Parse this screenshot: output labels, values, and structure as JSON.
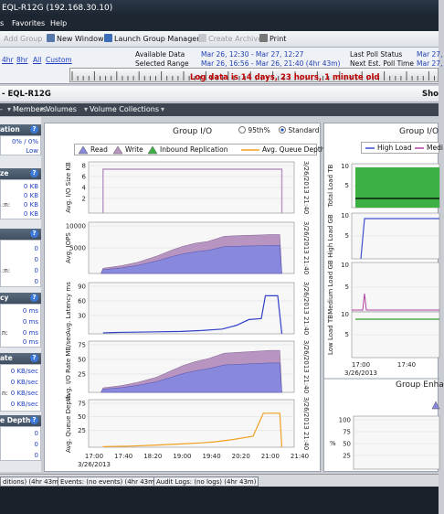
{
  "window": {
    "title": "EQL-R12G (192.168.30.10)"
  },
  "menu": [
    "s",
    "Favorites",
    "Help"
  ],
  "toolbar": {
    "add_group": "Add Group",
    "new_window": "New Window",
    "launch_manager": "Launch Group Manager",
    "create_archive": "Create Archive",
    "print": "Print"
  },
  "timebar": {
    "ranges": [
      "4hr",
      "8hr",
      "All",
      "Custom"
    ],
    "available_label": "Available Data",
    "selected_label": "Selected Range",
    "available_value": "Mar 26, 12:30 - Mar 27, 12:27",
    "selected_value": "Mar 26, 16:56 - Mar 26, 21:40 (4hr 43m)",
    "last_poll_label": "Last Poll Status",
    "next_poll_label": "Next Est. Poll Time",
    "last_poll_value": "Mar 27,",
    "next_poll_value": "Mar 27,",
    "log_banner": "Log data is 14 days, 23 hours, 1 minute old"
  },
  "group": {
    "name": "- EQL-R12G",
    "right": "Sho"
  },
  "nav": [
    "- ",
    "Members",
    "Volumes",
    "Volume Collections"
  ],
  "left": {
    "p1": {
      "title": "ation",
      "rows": [
        "0% / 0%",
        "Low"
      ]
    },
    "p2": {
      "title": "ze",
      "rows": [
        "0 KB",
        "0 KB",
        "0 KB",
        "0 KB"
      ],
      "labels": [
        "",
        "",
        ":n:",
        ""
      ]
    },
    "p3": {
      "title": "",
      "rows": [
        "0",
        "0",
        "0",
        "0"
      ],
      "labels": [
        "",
        "",
        ":n:",
        ""
      ]
    },
    "p4": {
      "title": "cy",
      "rows": [
        "0 ms",
        "0 ms",
        "0 ms",
        "0 ms"
      ],
      "labels": [
        "",
        "",
        "n:",
        ""
      ]
    },
    "p5": {
      "title": "ate",
      "rows": [
        "0 KB/sec",
        "0 KB/sec",
        "0 KB/sec",
        "0 KB/sec"
      ],
      "labels": [
        "",
        "",
        "n:",
        ""
      ]
    },
    "p6": {
      "title": "e Depth",
      "rows": [
        "0",
        "0",
        "0"
      ],
      "labels": [
        "",
        "",
        ""
      ]
    }
  },
  "group_io": {
    "title": "Group I/O",
    "radio_95": "95th%",
    "radio_std": "Standard",
    "legend": [
      "Read",
      "Write",
      "Inbound Replication",
      "Avg. Queue Depth"
    ],
    "colors": {
      "read": "#8888dd",
      "write": "#b795c0",
      "repl": "#3cb043",
      "queue": "#f0a020"
    },
    "stamp": "3/26/2013 21:40",
    "x_ticks": [
      "17:00",
      "17:40",
      "18:20",
      "19:00",
      "19:40",
      "20:20",
      "21:00",
      "21:40"
    ],
    "x_date": "3/26/2013",
    "charts": [
      {
        "ylabel": "Avg. I/O Size KB",
        "ticks": [
          "8",
          "6",
          "4",
          "2"
        ]
      },
      {
        "ylabel": "Avg. IOPS",
        "ticks": [
          "10000",
          "5000"
        ]
      },
      {
        "ylabel": "Avg. Latency ms",
        "ticks": [
          "90",
          "60",
          "30"
        ]
      },
      {
        "ylabel": "Avg. I/O Rate MB/sec",
        "ticks": [
          "75",
          "50",
          "25"
        ]
      },
      {
        "ylabel": "Avg. Queue Depth",
        "ticks": [
          "75",
          "50",
          "25"
        ]
      }
    ]
  },
  "right": {
    "title": "Group I/O",
    "legend": [
      "High Load",
      "Medi"
    ],
    "ylabels": [
      "Total Load TB",
      "High Load GB",
      "Medium Load GB",
      "Low Load TB"
    ],
    "ticks": [
      "10",
      "5",
      "10",
      "5",
      "10",
      "5",
      "10",
      "5"
    ],
    "x_ticks": [
      "17:00",
      "17:40"
    ],
    "x_date": "3/26/2013",
    "enh_title": "Group Enha",
    "enh_ylabel": "%",
    "enh_ticks": [
      "100",
      "75",
      "50",
      "25"
    ]
  },
  "status_tabs": [
    "ditions) (4hr 43m)",
    "Events: (no events) (4hr 43m)",
    "Audit Logs: (no logs) (4hr 43m)"
  ]
}
